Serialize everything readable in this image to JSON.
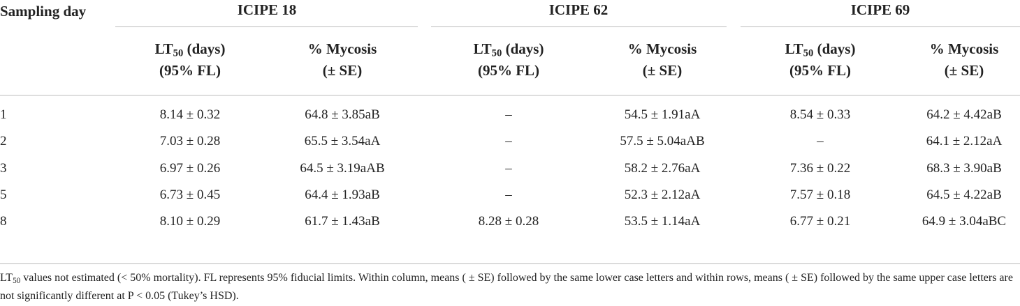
{
  "table": {
    "corner": "Sampling day",
    "groups": [
      "ICIPE 18",
      "ICIPE 62",
      "ICIPE 69"
    ],
    "lt_header": {
      "prefix": "LT",
      "subscript": "50",
      "suffix": " (days)",
      "line2": "(95% FL)"
    },
    "mycosis_header": {
      "line1": "% Mycosis",
      "line2": "(± SE)"
    },
    "rows": [
      [
        "1",
        "8.14 ± 0.32",
        "64.8 ± 3.85aB",
        "–",
        "54.5 ± 1.91aA",
        "8.54 ± 0.33",
        "64.2 ± 4.42aB"
      ],
      [
        "2",
        "7.03 ± 0.28",
        "65.5 ± 3.54aA",
        "–",
        "57.5 ± 5.04aAB",
        "–",
        "64.1 ± 2.12aA"
      ],
      [
        "3",
        "6.97 ± 0.26",
        "64.5 ± 3.19aAB",
        "–",
        "58.2 ± 2.76aA",
        "7.36 ± 0.22",
        "68.3 ± 3.90aB"
      ],
      [
        "5",
        "6.73 ± 0.45",
        "64.4 ± 1.93aB",
        "–",
        "52.3 ± 2.12aA",
        "7.57 ± 0.18",
        "64.5 ± 4.22aB"
      ],
      [
        "8",
        "8.10 ± 0.29",
        "61.7 ± 1.43aB",
        "8.28 ± 0.28",
        "53.5 ± 1.14aA",
        "6.77 ± 0.21",
        "64.9 ± 3.04aBC"
      ]
    ]
  },
  "footnote": {
    "prefix": "LT",
    "subscript": "50",
    "text": " values not estimated (< 50% mortality). FL represents 95% fiducial limits. Within column, means ( ± SE) followed by the same lower case letters and within rows, means ( ± SE) followed by the same upper case letters are not significantly different at P < 0.05 (Tukey’s HSD)."
  }
}
